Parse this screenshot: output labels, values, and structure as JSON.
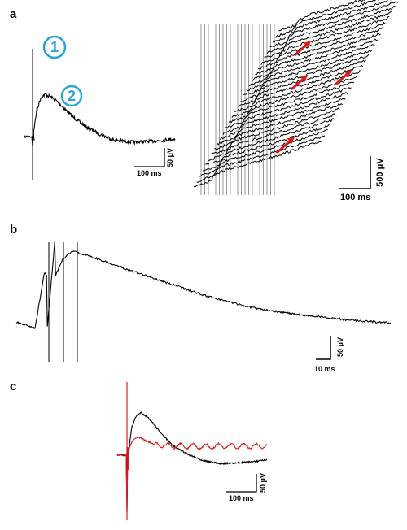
{
  "colors": {
    "trace": "#000000",
    "highlight_trace": "#e01b1b",
    "callout": "#29a3dd",
    "arrow": "#e01b1b",
    "stim_line": "#7d7d7d"
  },
  "panels": {
    "a": {
      "label": "a",
      "callouts": [
        "1",
        "2"
      ],
      "left_scale": {
        "time": "100 ms",
        "voltage": "50 μV"
      },
      "right_scale": {
        "time": "100 ms",
        "voltage": "500 μV"
      }
    },
    "b": {
      "label": "b",
      "scale": {
        "time": "10 ms",
        "voltage": "50 μV"
      }
    },
    "c": {
      "label": "c",
      "scale": {
        "time": "100 ms",
        "voltage": "50 μV"
      }
    }
  },
  "chart_data": [
    {
      "type": "line",
      "panel": "a-left",
      "description_units": {
        "x": "ms",
        "y": "μV"
      },
      "x": [
        0,
        5,
        10,
        20,
        30,
        45,
        60,
        80,
        100,
        130,
        160,
        200,
        250,
        300,
        350
      ],
      "series": [
        {
          "values": [
            0,
            20,
            45,
            68,
            74,
            70,
            62,
            48,
            34,
            18,
            6,
            -6,
            -10,
            -8,
            -4
          ]
        }
      ]
    },
    {
      "type": "line",
      "panel": "a-right",
      "description_units": {
        "x": "ms",
        "y": "μV"
      },
      "trace_count": 30,
      "arrow_count": 4
    },
    {
      "type": "line",
      "panel": "b",
      "description_units": {
        "x": "ms",
        "y": "μV"
      },
      "x": [
        0,
        8,
        12,
        16,
        20,
        24,
        30,
        40,
        60,
        80,
        100,
        120,
        140,
        160
      ],
      "series": [
        {
          "values": [
            0,
            -5,
            40,
            35,
            52,
            58,
            55,
            48,
            35,
            22,
            12,
            6,
            2,
            -1
          ]
        }
      ]
    },
    {
      "type": "line",
      "panel": "c",
      "description_units": {
        "x": "ms",
        "y": "μV"
      },
      "x": [
        0,
        5,
        10,
        20,
        30,
        45,
        60,
        80,
        100,
        130,
        160,
        200,
        250,
        300
      ],
      "series": [
        {
          "values": [
            0,
            15,
            45,
            65,
            70,
            62,
            48,
            30,
            15,
            2,
            -8,
            -14,
            -12,
            -8
          ]
        },
        {
          "values": [
            0,
            10,
            22,
            30,
            28,
            22,
            18,
            16,
            15,
            15,
            14,
            15,
            15,
            15
          ]
        }
      ]
    }
  ]
}
